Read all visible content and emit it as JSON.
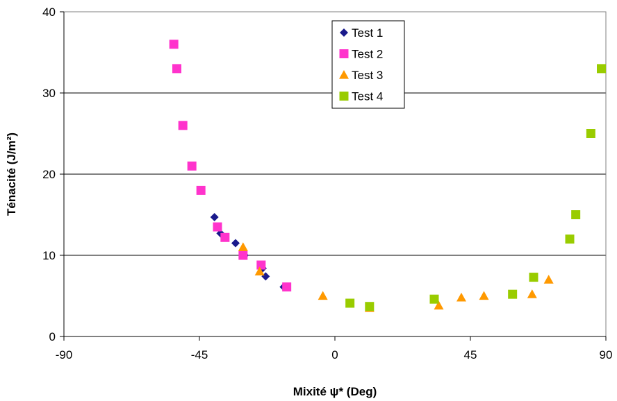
{
  "chart_data": {
    "type": "scatter",
    "title": "",
    "xlabel": "Mixité ψ* (Deg)",
    "ylabel": "Ténacité (J/m²)",
    "xlim": [
      -90,
      90
    ],
    "ylim": [
      0,
      40
    ],
    "xticks": [
      "-90",
      "-45",
      "0",
      "45",
      "90"
    ],
    "yticks": [
      "0",
      "10",
      "20",
      "30",
      "40"
    ],
    "grid": "horizontal",
    "legend_position": "top-center",
    "series": [
      {
        "name": "Test 1",
        "marker": "diamond",
        "color": "#1a1a8c",
        "points": [
          [
            -40,
            14.7
          ],
          [
            -38,
            12.7
          ],
          [
            -33,
            11.5
          ],
          [
            -30,
            10
          ],
          [
            -24,
            8.4
          ],
          [
            -23,
            7.4
          ],
          [
            -17,
            6.1
          ]
        ]
      },
      {
        "name": "Test 2",
        "marker": "square",
        "color": "#ff33cc",
        "points": [
          [
            -53.5,
            36
          ],
          [
            -52.5,
            33
          ],
          [
            -50.5,
            26
          ],
          [
            -47.5,
            21
          ],
          [
            -44.5,
            18
          ],
          [
            -39,
            13.5
          ],
          [
            -36.5,
            12.2
          ],
          [
            -30.5,
            10
          ],
          [
            -24.5,
            8.8
          ],
          [
            -16,
            6.1
          ]
        ]
      },
      {
        "name": "Test 3",
        "marker": "triangle",
        "color": "#ff9900",
        "points": [
          [
            -30.5,
            11
          ],
          [
            -25,
            8
          ],
          [
            -4,
            5
          ],
          [
            11.5,
            3.5
          ],
          [
            34.5,
            3.8
          ],
          [
            42,
            4.8
          ],
          [
            49.5,
            5
          ],
          [
            65.5,
            5.2
          ],
          [
            71,
            7
          ]
        ]
      },
      {
        "name": "Test 4",
        "marker": "square",
        "color": "#99cc00",
        "points": [
          [
            5,
            4.1
          ],
          [
            11.5,
            3.7
          ],
          [
            33,
            4.6
          ],
          [
            59,
            5.2
          ],
          [
            66,
            7.3
          ],
          [
            78,
            12
          ],
          [
            80,
            15
          ],
          [
            85,
            25
          ],
          [
            88.5,
            33
          ]
        ]
      }
    ]
  }
}
